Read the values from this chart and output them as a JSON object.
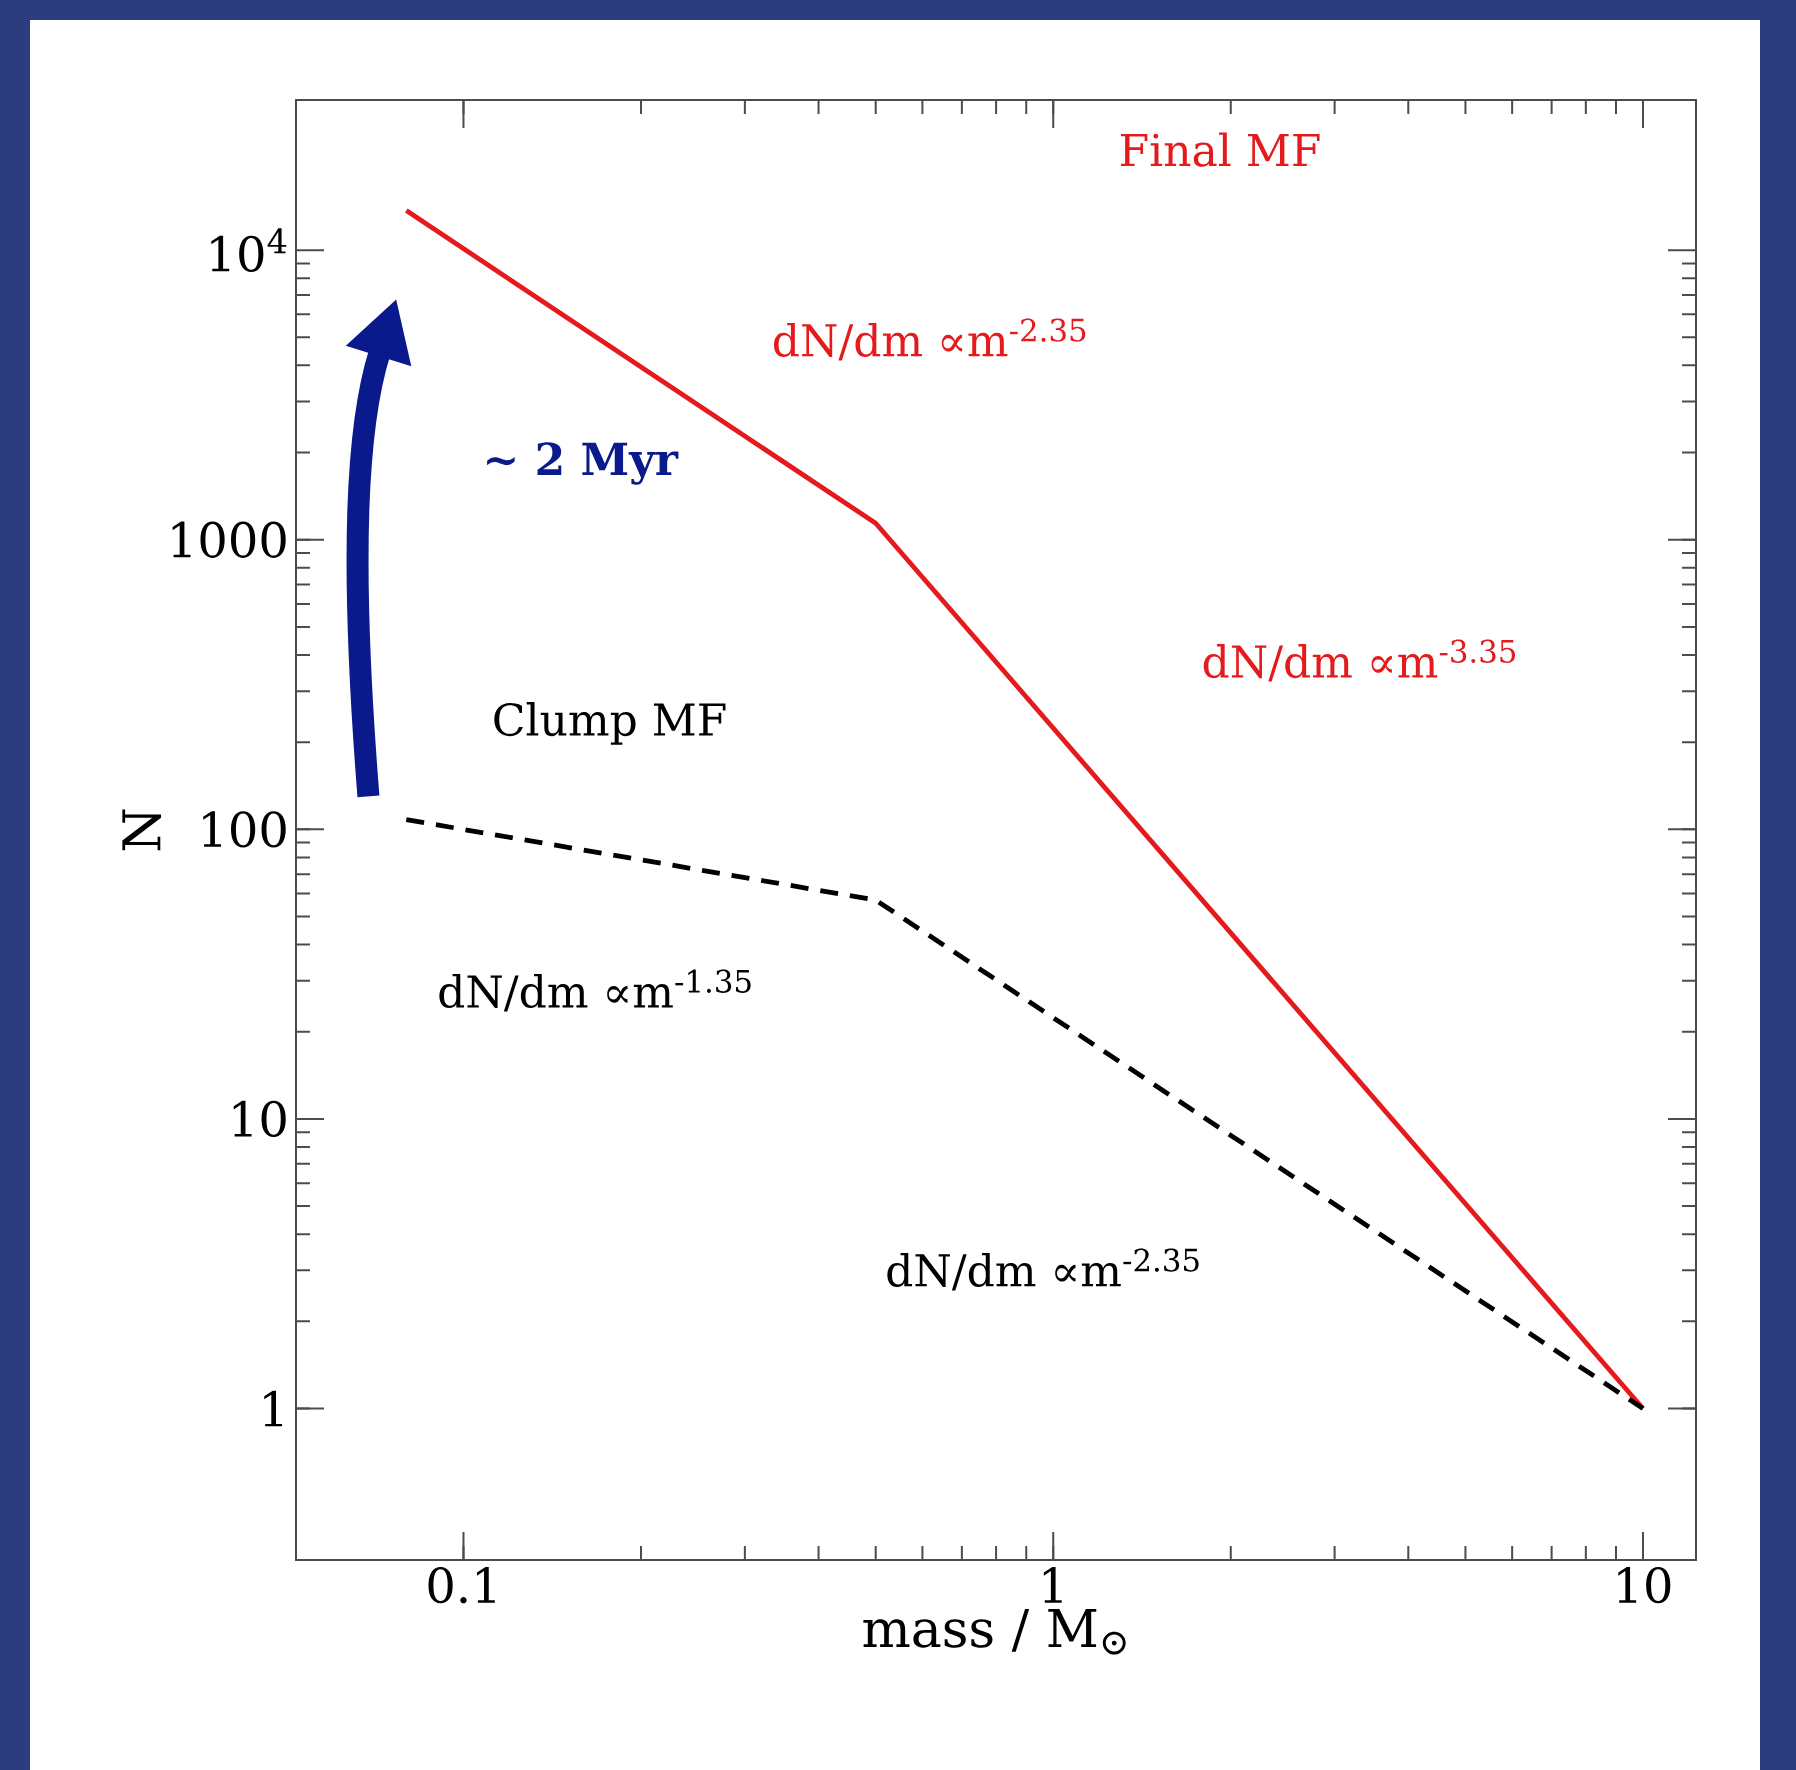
{
  "chart_data": {
    "type": "line",
    "xlabel": "mass / M$_{⊙}$",
    "ylabel": "N",
    "x": [
      0.08,
      0.5,
      10
    ],
    "series": [
      {
        "color": "#e41a1c",
        "values": [
          13700,
          1140,
          1
        ],
        "line_style": "solid"
      },
      {
        "color": "#000000",
        "values": [
          108,
          57,
          1
        ],
        "line_style": "dashed"
      }
    ],
    "log": "xy",
    "xlim": [
      0.052,
      12.3
    ],
    "ylim": [
      0.3,
      33000
    ],
    "xticks": [
      0.1,
      1,
      10
    ],
    "yticks": [
      1,
      10,
      100,
      1000,
      {
        "value": 10000,
        "label": "10$^{4}$"
      }
    ],
    "grid": false,
    "marker": "none",
    "annotations": [
      "Final MF",
      "dN/dm ∝m$^{-2.35}$",
      "dN/dm ∝m$^{-3.35}$",
      "Clump MF",
      "dN/dm ∝m$^{-1.35}$",
      "dN/dm ∝m$^{-2.35}$",
      "~ 2 Myr"
    ]
  }
}
